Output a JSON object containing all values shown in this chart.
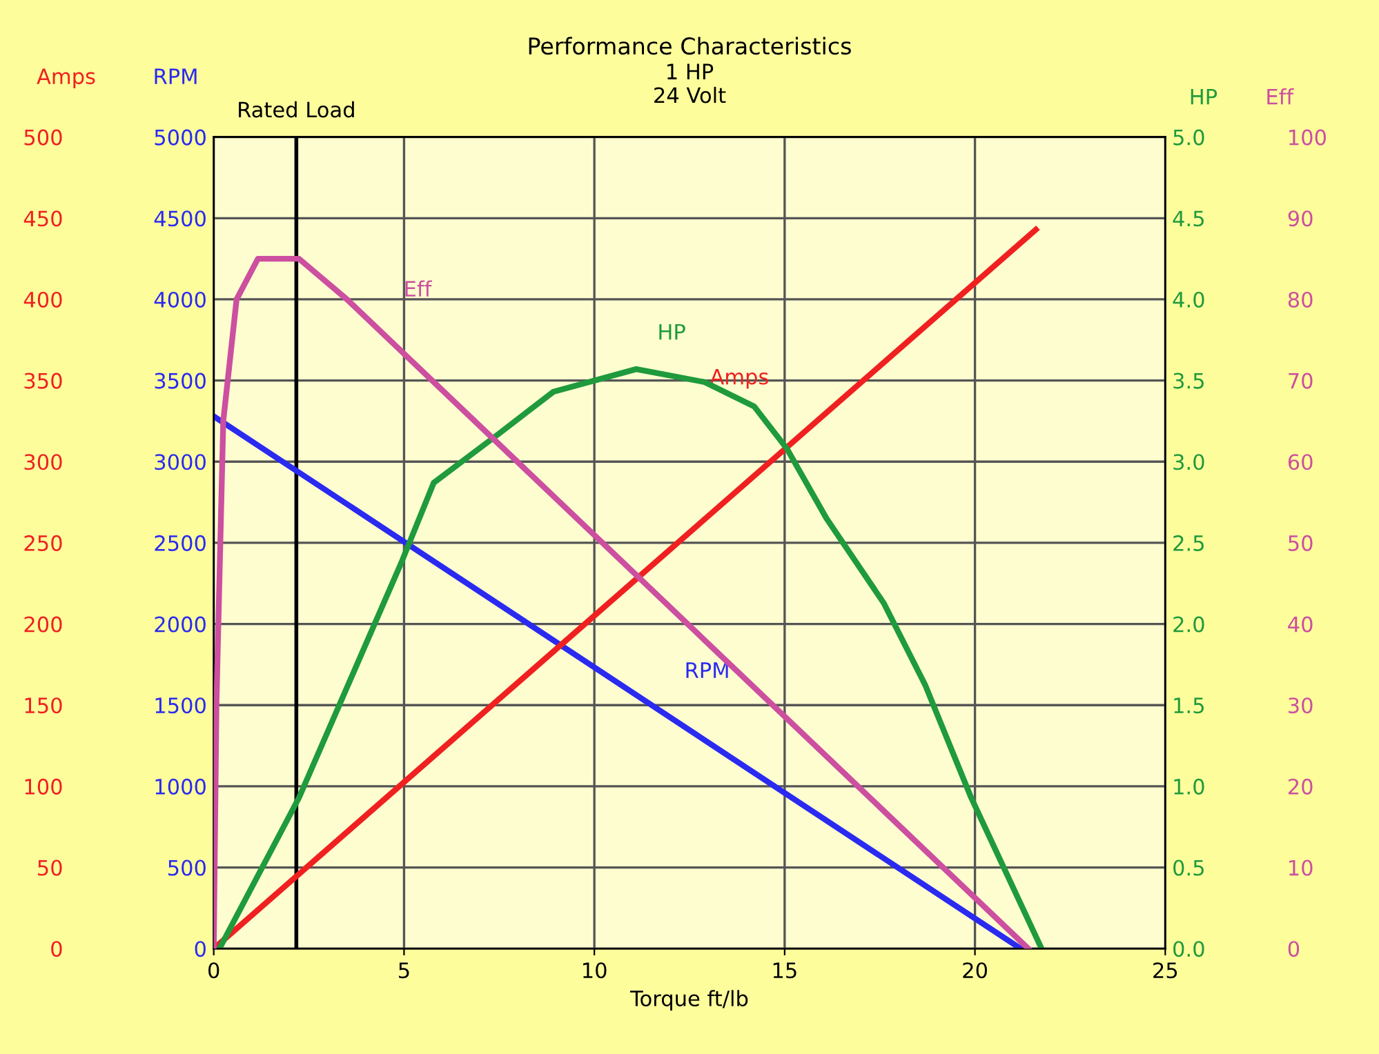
{
  "chart_data": [
    {
      "type": "line",
      "title": "Performance Characteristics",
      "subtitle": "1 HP\n24 Volt",
      "xlabel": "Torque ft/lb",
      "ylabel": "RPM",
      "y2label": "Amps",
      "xlim": [
        0,
        25
      ],
      "xticks": [
        0,
        5,
        10,
        15,
        20,
        25
      ],
      "ylim": [
        0,
        5000
      ],
      "yticks": [
        0,
        500,
        1000,
        1500,
        2000,
        2500,
        3000,
        3500,
        4000,
        4500,
        5000
      ],
      "y2lim": [
        0,
        500
      ],
      "y2ticks": [
        0,
        50,
        100,
        150,
        200,
        250,
        300,
        350,
        400,
        450,
        500
      ],
      "grid": true,
      "legend": false,
      "line_style": "solid",
      "marker": "none",
      "ref_lines": [
        {
          "axis": "x",
          "value": 2.17,
          "label": "Rated Load",
          "color": "#000000"
        }
      ],
      "series": [
        {
          "name": "RPM",
          "color": "#2a2af0",
          "axis": "y",
          "x": [
            0,
            21.2
          ],
          "values": [
            3280,
            0
          ]
        },
        {
          "name": "Amps",
          "color": "#f02020",
          "axis": "y2",
          "x": [
            0,
            21.6
          ],
          "values": [
            0,
            443
          ]
        }
      ]
    },
    {
      "type": "line",
      "ylabel": "HP",
      "y2label": "Eff",
      "xlim": [
        0,
        25
      ],
      "tick_labels": "y",
      "ylim": [
        0,
        5
      ],
      "yticks": [
        {
          "value": 0,
          "label": "0.0"
        },
        {
          "value": 0.5,
          "label": "0.5"
        },
        {
          "value": 1,
          "label": "1.0"
        },
        {
          "value": 1.5,
          "label": "1.5"
        },
        {
          "value": 2,
          "label": "2.0"
        },
        {
          "value": 2.5,
          "label": "2.5"
        },
        {
          "value": 3,
          "label": "3.0"
        },
        {
          "value": 3.5,
          "label": "3.5"
        },
        {
          "value": 4,
          "label": "4.0"
        },
        {
          "value": 4.5,
          "label": "4.5"
        },
        {
          "value": 5,
          "label": "5.0"
        }
      ],
      "y2lim": [
        0,
        100
      ],
      "y2ticks": [
        0,
        10,
        20,
        30,
        40,
        50,
        60,
        70,
        80,
        90,
        100
      ],
      "line_style": "solid",
      "marker": "none",
      "series": [
        {
          "name": "HP",
          "color": "#1f9a3c",
          "axis": "y",
          "x": [
            0.15,
            2.24,
            4.95,
            5.78,
            7.48,
            8.92,
            11.1,
            12.9,
            14.2,
            15.06,
            16.1,
            17.6,
            18.7,
            19.9,
            21.75
          ],
          "values": [
            0,
            0.93,
            2.39,
            2.87,
            3.17,
            3.43,
            3.57,
            3.49,
            3.34,
            3.08,
            2.65,
            2.13,
            1.62,
            0.93,
            0
          ]
        },
        {
          "name": "Eff",
          "color": "#cc4fa0",
          "axis": "y2",
          "x": [
            0,
            0.07,
            0.25,
            0.6,
            1.16,
            1.7,
            2.24,
            3.5,
            21.4
          ],
          "values": [
            0,
            30,
            65,
            80,
            85,
            85,
            85,
            80,
            0
          ]
        }
      ]
    }
  ]
}
